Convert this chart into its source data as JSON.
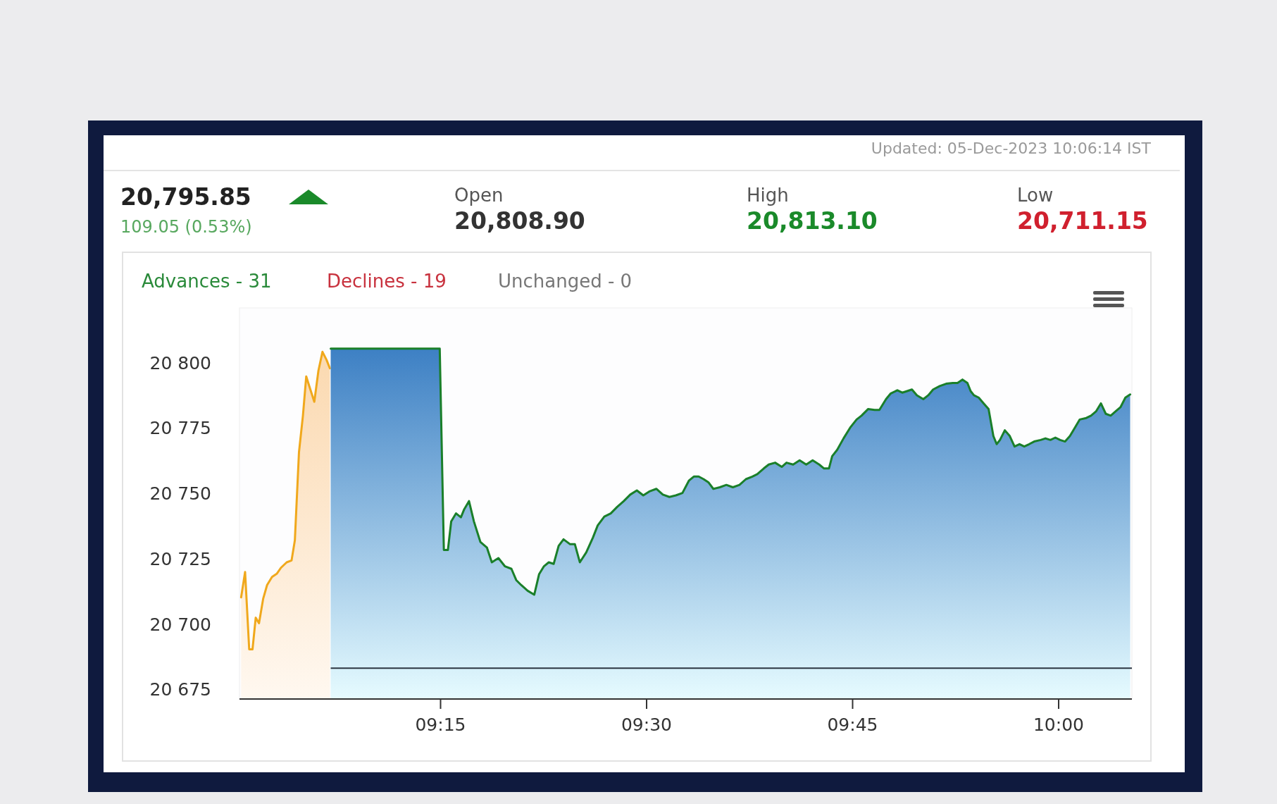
{
  "chart_data": {
    "type": "area",
    "annotations": [
      "Updated: 05-Dec-2023 10:06:14 IST",
      "20,795.85",
      "109.05 (0.53%)",
      "Open",
      "20,808.90",
      "High",
      "20,813.10",
      "Low",
      "20,711.15",
      "Advances - 31",
      "Declines - 19",
      "Unchanged - 0"
    ],
    "series": [
      {
        "color": "#f0a81c",
        "x": [
          9.008,
          9.0128,
          9.0178,
          9.0218,
          9.0257,
          9.0297,
          9.0347,
          9.0395,
          9.0455,
          9.0515,
          9.0563,
          9.0633,
          9.0692,
          9.0732,
          9.0782,
          9.083,
          9.087,
          9.092,
          9.0968,
          9.1018,
          9.1067,
          9.1117,
          9.1157
        ],
        "values": [
          20710.2,
          20719.9,
          20690.3,
          20690.3,
          20702.4,
          20700.3,
          20709.6,
          20714.9,
          20718.0,
          20719.3,
          20721.5,
          20723.6,
          20724.3,
          20732.0,
          20765.7,
          20779.7,
          20794.7,
          20789.7,
          20785.0,
          20796.9,
          20804.1,
          20801.0,
          20797.8
        ]
      },
      {
        "color": "#1a7f2a",
        "x": [
          9.1167,
          9.249,
          9.254,
          9.2589,
          9.2629,
          9.2688,
          9.2747,
          9.2787,
          9.2845,
          9.2905,
          9.2983,
          9.3063,
          9.3122,
          9.3202,
          9.328,
          9.336,
          9.3418,
          9.3478,
          9.3557,
          9.3637,
          9.3695,
          9.3755,
          9.3813,
          9.3873,
          9.3933,
          9.3992,
          9.4072,
          9.413,
          9.419,
          9.4268,
          9.4348,
          9.4407,
          9.4487,
          9.4565,
          9.4643,
          9.4723,
          9.4802,
          9.4882,
          9.496,
          9.504,
          9.5118,
          9.5197,
          9.5277,
          9.5355,
          9.5435,
          9.5513,
          9.5573,
          9.5632,
          9.5692,
          9.575,
          9.581,
          9.5888,
          9.5968,
          9.6047,
          9.6127,
          9.6205,
          9.6283,
          9.6343,
          9.6422,
          9.6482,
          9.656,
          9.664,
          9.6698,
          9.6778,
          9.6857,
          9.6937,
          9.7015,
          9.7095,
          9.7153,
          9.7213,
          9.7252,
          9.7312,
          9.739,
          9.747,
          9.7548,
          9.7608,
          9.7687,
          9.7767,
          9.7825,
          9.7905,
          9.7963,
          9.8043,
          9.8102,
          9.8162,
          9.822,
          9.828,
          9.8358,
          9.8418,
          9.8477,
          9.8557,
          9.8635,
          9.8715,
          9.8773,
          9.8833,
          9.8893,
          9.8932,
          9.8972,
          9.903,
          9.909,
          9.915,
          9.9208,
          9.9248,
          9.9288,
          9.9347,
          9.9407,
          9.9465,
          9.9525,
          9.9583,
          9.9643,
          9.9703,
          9.9782,
          9.984,
          9.99,
          9.996,
          10.0018,
          10.0078,
          10.0137,
          10.0197,
          10.0255,
          10.0335,
          10.0393,
          10.0453,
          10.0513,
          10.0572,
          10.0632,
          10.069,
          10.075,
          10.081,
          10.0868
        ],
        "values": [
          20805.3,
          20805.3,
          20728.3,
          20728.3,
          20739.2,
          20742.3,
          20740.8,
          20743.9,
          20747.0,
          20739.2,
          20731.4,
          20729.2,
          20723.6,
          20725.2,
          20722.1,
          20721.1,
          20716.8,
          20714.9,
          20712.7,
          20711.2,
          20719.0,
          20722.1,
          20723.6,
          20723.0,
          20729.9,
          20732.4,
          20730.5,
          20730.5,
          20723.6,
          20727.4,
          20733.0,
          20737.7,
          20741.1,
          20742.3,
          20744.8,
          20747.0,
          20749.5,
          20751.1,
          20749.2,
          20750.8,
          20751.7,
          20749.5,
          20748.6,
          20749.2,
          20750.1,
          20754.8,
          20756.4,
          20756.4,
          20755.4,
          20754.2,
          20751.7,
          20752.3,
          20753.2,
          20752.3,
          20753.2,
          20755.4,
          20756.4,
          20757.3,
          20759.5,
          20761.0,
          20761.7,
          20760.1,
          20761.7,
          20761.0,
          20762.6,
          20761.0,
          20762.6,
          20761.0,
          20759.5,
          20759.5,
          20764.2,
          20766.6,
          20771.0,
          20775.1,
          20778.2,
          20779.7,
          20782.2,
          20781.9,
          20781.9,
          20786.0,
          20788.2,
          20789.4,
          20788.5,
          20789.1,
          20789.7,
          20787.5,
          20786.0,
          20787.5,
          20789.7,
          20791.0,
          20791.9,
          20792.2,
          20792.2,
          20793.5,
          20792.2,
          20789.1,
          20787.5,
          20786.6,
          20784.4,
          20782.2,
          20771.9,
          20768.8,
          20770.4,
          20774.1,
          20771.9,
          20767.9,
          20768.8,
          20767.9,
          20768.8,
          20769.8,
          20770.4,
          20771.0,
          20770.4,
          20771.3,
          20770.4,
          20769.8,
          20771.9,
          20775.1,
          20778.2,
          20778.8,
          20779.7,
          20781.3,
          20784.4,
          20780.4,
          20779.7,
          20781.3,
          20782.9,
          20786.6,
          20787.8
        ]
      }
    ],
    "xlim": [
      9.006,
      10.0889
    ],
    "xticks": [
      {
        "value": 9.25,
        "label": "09:15"
      },
      {
        "value": 9.5,
        "label": "09:30"
      },
      {
        "value": 9.75,
        "label": "09:45"
      },
      {
        "value": 10,
        "label": "10:00"
      }
    ],
    "ylim": [
      20671.3,
      20820.9
    ],
    "yticks": [
      {
        "value": 20675,
        "label": "20 675"
      },
      {
        "value": 20700,
        "label": "20 700"
      },
      {
        "value": 20725,
        "label": "20 725"
      },
      {
        "value": 20750,
        "label": "20 750"
      },
      {
        "value": 20775,
        "label": "20 775"
      },
      {
        "value": 20800,
        "label": "20 800"
      }
    ],
    "ref_lines": [
      {
        "axis": "y",
        "value": 20683.1,
        "color": "#2b3440"
      }
    ],
    "grid": false,
    "marker": "none",
    "line_style": "solid"
  }
}
